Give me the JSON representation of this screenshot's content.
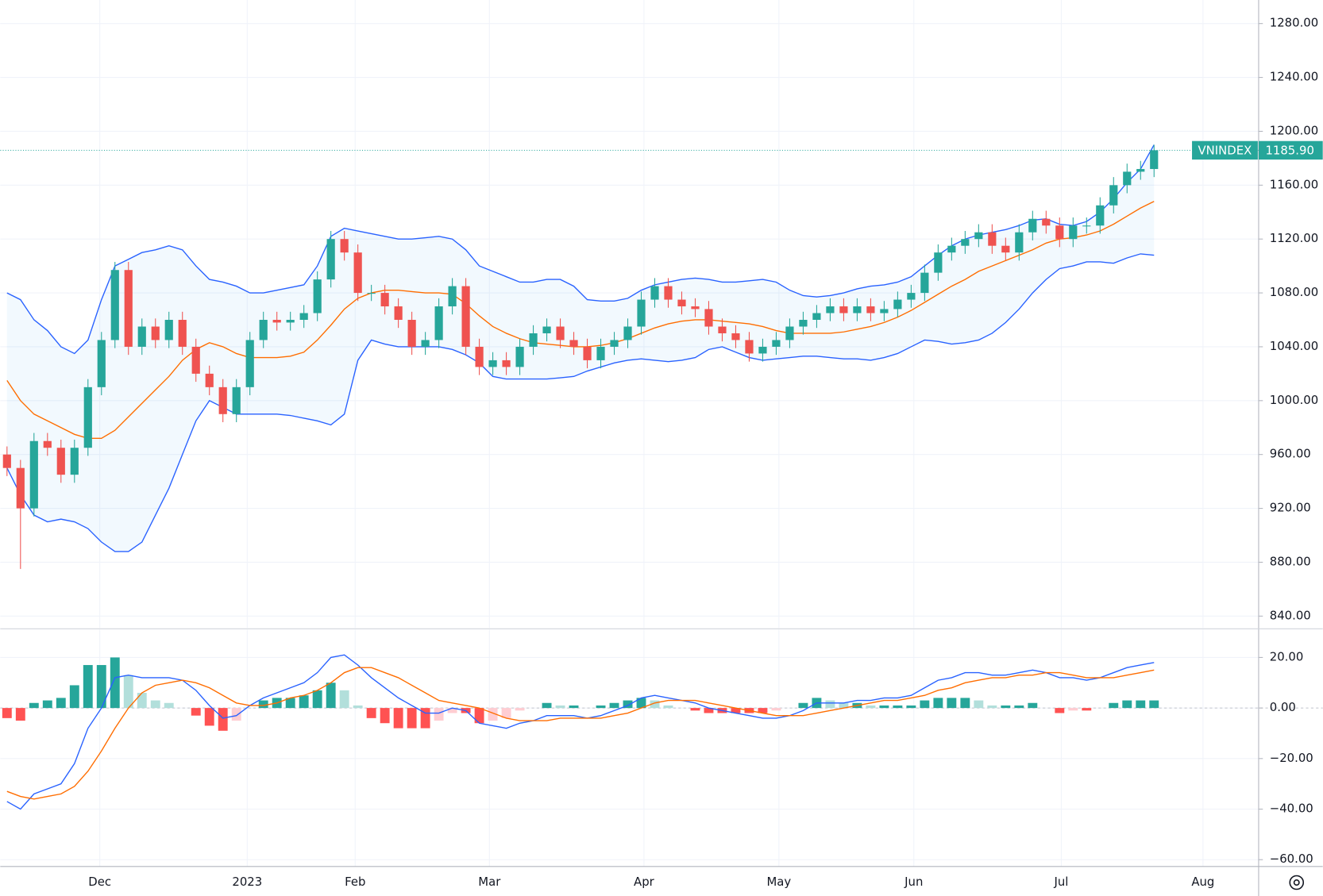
{
  "chart_data": [
    {
      "type": "candlestick",
      "symbol": "VNINDEX",
      "x": [
        1,
        3,
        5,
        7,
        9,
        11,
        13,
        15,
        17,
        19,
        21,
        23,
        25,
        27,
        29,
        31,
        33,
        35,
        37,
        39,
        41,
        43,
        45,
        47,
        49,
        51,
        53,
        55,
        57,
        59,
        61,
        63,
        65,
        67,
        69,
        71,
        73,
        75,
        77,
        79,
        81,
        83,
        85,
        87,
        89,
        91,
        93,
        95,
        97,
        99,
        101,
        103,
        105,
        107,
        109,
        111,
        113,
        115,
        117,
        119,
        121,
        123,
        125,
        127,
        129,
        131,
        133,
        135,
        137,
        139,
        141,
        143,
        145,
        147,
        149,
        151,
        153,
        155,
        157,
        159,
        161,
        163,
        165,
        167,
        169,
        171
      ],
      "open": [
        960,
        950,
        920,
        970,
        965,
        945,
        965,
        1010,
        1045,
        1097,
        1040,
        1055,
        1045,
        1060,
        1040,
        1020,
        1010,
        990,
        1010,
        1045,
        1060,
        1058,
        1060,
        1065,
        1090,
        1120,
        1110,
        1080,
        1080,
        1070,
        1060,
        1040,
        1045,
        1070,
        1085,
        1040,
        1025,
        1030,
        1025,
        1040,
        1050,
        1055,
        1045,
        1040,
        1030,
        1040,
        1045,
        1055,
        1075,
        1085,
        1075,
        1070,
        1068,
        1055,
        1050,
        1045,
        1035,
        1040,
        1045,
        1055,
        1060,
        1065,
        1070,
        1065,
        1070,
        1065,
        1068,
        1075,
        1080,
        1095,
        1110,
        1115,
        1120,
        1125,
        1115,
        1110,
        1125,
        1135,
        1130,
        1120,
        1130,
        1130,
        1145,
        1160,
        1170,
        1172
      ],
      "high": [
        966,
        956,
        976,
        976,
        971,
        971,
        1016,
        1051,
        1103,
        1103,
        1061,
        1061,
        1066,
        1066,
        1046,
        1026,
        1016,
        1016,
        1051,
        1066,
        1066,
        1066,
        1071,
        1096,
        1126,
        1126,
        1116,
        1086,
        1086,
        1076,
        1066,
        1051,
        1076,
        1091,
        1091,
        1046,
        1036,
        1036,
        1046,
        1056,
        1061,
        1061,
        1051,
        1046,
        1046,
        1051,
        1061,
        1081,
        1091,
        1091,
        1081,
        1076,
        1074,
        1061,
        1056,
        1051,
        1046,
        1051,
        1061,
        1066,
        1071,
        1076,
        1076,
        1076,
        1076,
        1074,
        1081,
        1086,
        1101,
        1116,
        1121,
        1126,
        1131,
        1131,
        1121,
        1131,
        1141,
        1141,
        1136,
        1136,
        1136,
        1151,
        1166,
        1176,
        1178,
        1190
      ],
      "low": [
        944,
        875,
        914,
        959,
        939,
        939,
        959,
        1004,
        1039,
        1034,
        1034,
        1039,
        1039,
        1034,
        1014,
        1004,
        984,
        984,
        1004,
        1039,
        1052,
        1052,
        1054,
        1059,
        1084,
        1104,
        1074,
        1074,
        1064,
        1054,
        1034,
        1034,
        1039,
        1064,
        1034,
        1019,
        1019,
        1019,
        1019,
        1034,
        1044,
        1039,
        1034,
        1024,
        1024,
        1034,
        1039,
        1049,
        1069,
        1069,
        1064,
        1062,
        1049,
        1044,
        1039,
        1029,
        1029,
        1034,
        1039,
        1049,
        1054,
        1059,
        1059,
        1059,
        1059,
        1059,
        1062,
        1069,
        1074,
        1089,
        1104,
        1109,
        1114,
        1109,
        1104,
        1104,
        1119,
        1124,
        1114,
        1114,
        1124,
        1124,
        1139,
        1154,
        1164,
        1166
      ],
      "close": [
        950,
        920,
        970,
        965,
        945,
        965,
        1010,
        1045,
        1097,
        1040,
        1055,
        1045,
        1060,
        1040,
        1020,
        1010,
        990,
        1010,
        1045,
        1060,
        1058,
        1060,
        1065,
        1090,
        1120,
        1110,
        1080,
        1080,
        1070,
        1060,
        1040,
        1045,
        1070,
        1085,
        1040,
        1025,
        1030,
        1025,
        1040,
        1050,
        1055,
        1045,
        1040,
        1030,
        1040,
        1045,
        1055,
        1075,
        1085,
        1075,
        1070,
        1068,
        1055,
        1050,
        1045,
        1035,
        1040,
        1045,
        1055,
        1060,
        1065,
        1070,
        1065,
        1070,
        1065,
        1068,
        1075,
        1080,
        1095,
        1110,
        1115,
        1120,
        1125,
        1115,
        1110,
        1125,
        1135,
        1130,
        1120,
        1130,
        1130,
        1145,
        1160,
        1170,
        1172,
        1185.9
      ],
      "last_label": "1185.90",
      "up_color": "#26a69a",
      "down_color": "#ef5350",
      "bands": [
        {
          "color": "#2962ff",
          "values": [
            1080,
            1075,
            1060,
            1052,
            1040,
            1035,
            1045,
            1075,
            1100,
            1105,
            1110,
            1112,
            1115,
            1112,
            1100,
            1090,
            1088,
            1085,
            1080,
            1080,
            1082,
            1084,
            1086,
            1100,
            1122,
            1128,
            1126,
            1124,
            1122,
            1120,
            1120,
            1121,
            1122,
            1120,
            1112,
            1100,
            1096,
            1092,
            1088,
            1088,
            1090,
            1090,
            1085,
            1075,
            1074,
            1074,
            1076,
            1082,
            1086,
            1088,
            1090,
            1091,
            1090,
            1088,
            1088,
            1089,
            1090,
            1088,
            1082,
            1078,
            1077,
            1078,
            1080,
            1083,
            1085,
            1086,
            1088,
            1092,
            1100,
            1108,
            1115,
            1120,
            1123,
            1125,
            1127,
            1130,
            1134,
            1135,
            1131,
            1130,
            1133,
            1140,
            1150,
            1162,
            1172,
            1190
          ]
        },
        {
          "color": "#ff6d00",
          "values": [
            1015,
            1000,
            990,
            985,
            980,
            975,
            972,
            972,
            978,
            988,
            998,
            1008,
            1018,
            1030,
            1038,
            1043,
            1040,
            1035,
            1032,
            1032,
            1032,
            1033,
            1036,
            1045,
            1056,
            1068,
            1076,
            1080,
            1082,
            1082,
            1081,
            1080,
            1080,
            1079,
            1072,
            1063,
            1055,
            1050,
            1046,
            1043,
            1042,
            1041,
            1040,
            1040,
            1041,
            1043,
            1046,
            1050,
            1054,
            1057,
            1059,
            1060,
            1060,
            1059,
            1058,
            1057,
            1055,
            1052,
            1050,
            1050,
            1050,
            1050,
            1051,
            1053,
            1055,
            1058,
            1062,
            1067,
            1073,
            1079,
            1085,
            1090,
            1096,
            1100,
            1104,
            1108,
            1112,
            1117,
            1120,
            1121,
            1123,
            1126,
            1131,
            1137,
            1143,
            1148
          ]
        },
        {
          "color": "#2962ff",
          "values": [
            950,
            930,
            915,
            910,
            912,
            910,
            905,
            895,
            888,
            888,
            895,
            915,
            935,
            960,
            985,
            1000,
            995,
            990,
            990,
            990,
            990,
            989,
            987,
            985,
            982,
            990,
            1030,
            1045,
            1042,
            1040,
            1040,
            1040,
            1040,
            1038,
            1034,
            1028,
            1018,
            1016,
            1016,
            1016,
            1016,
            1017,
            1018,
            1022,
            1025,
            1028,
            1030,
            1031,
            1030,
            1029,
            1030,
            1032,
            1038,
            1040,
            1036,
            1032,
            1030,
            1031,
            1032,
            1033,
            1033,
            1032,
            1031,
            1031,
            1030,
            1032,
            1035,
            1040,
            1045,
            1044,
            1042,
            1043,
            1045,
            1050,
            1058,
            1068,
            1080,
            1090,
            1098,
            1100,
            1103,
            1103,
            1102,
            1106,
            1109,
            1108
          ]
        }
      ],
      "band_fill": "rgba(33,150,243,0.06)",
      "xlim": [
        0,
        186.5
      ],
      "xticks": [
        {
          "value": 14.75,
          "label": "Dec"
        },
        {
          "value": 36.6,
          "label": "2023"
        },
        {
          "value": 52.6,
          "label": "Feb"
        },
        {
          "value": 72.5,
          "label": "Mar"
        },
        {
          "value": 95.4,
          "label": "Apr"
        },
        {
          "value": 115.4,
          "label": "May"
        },
        {
          "value": 135.4,
          "label": "Jun"
        },
        {
          "value": 157.25,
          "label": "Jul"
        },
        {
          "value": 178.25,
          "label": "Aug"
        }
      ],
      "ylim": [
        831.2,
        1297.5
      ],
      "yticks": [
        {
          "value": 840,
          "label": "840.00"
        },
        {
          "value": 880,
          "label": "880.00"
        },
        {
          "value": 920,
          "label": "920.00"
        },
        {
          "value": 960,
          "label": "960.00"
        },
        {
          "value": 1000,
          "label": "1000.00"
        },
        {
          "value": 1040,
          "label": "1040.00"
        },
        {
          "value": 1080,
          "label": "1080.00"
        },
        {
          "value": 1120,
          "label": "1120.00"
        },
        {
          "value": 1160,
          "label": "1160.00"
        },
        {
          "value": 1200,
          "label": "1200.00"
        },
        {
          "value": 1240,
          "label": "1240.00"
        },
        {
          "value": 1280,
          "label": "1280.00"
        }
      ],
      "grid": true
    },
    {
      "type": "macd",
      "series": [
        {
          "color": "#2962ff",
          "values": [
            -37,
            -40,
            -34,
            -32,
            -30,
            -22,
            -8,
            0,
            12,
            13,
            12,
            12,
            12,
            11,
            7,
            1,
            -4,
            -3,
            1,
            4,
            6,
            8,
            10,
            14,
            20,
            21,
            17,
            12,
            8,
            4,
            1,
            -2,
            -2,
            0,
            -1,
            -6,
            -7,
            -8,
            -6,
            -5,
            -3,
            -3,
            -3,
            -4,
            -3,
            -1,
            1,
            4,
            5,
            4,
            3,
            2,
            0,
            -1,
            -2,
            -3,
            -4,
            -4,
            -3,
            -1,
            2,
            2,
            2,
            3,
            3,
            4,
            4,
            5,
            8,
            11,
            12,
            14,
            14,
            13,
            13,
            14,
            15,
            14,
            12,
            12,
            11,
            12,
            14,
            16,
            17,
            18
          ]
        },
        {
          "color": "#ff6d00",
          "values": [
            -33,
            -35,
            -36,
            -35,
            -34,
            -31,
            -25,
            -17,
            -8,
            0,
            6,
            9,
            10,
            11,
            10,
            8,
            5,
            2,
            1,
            1,
            2,
            4,
            5,
            7,
            10,
            14,
            16,
            16,
            14,
            12,
            9,
            6,
            3,
            2,
            1,
            0,
            -2,
            -4,
            -5,
            -5,
            -5,
            -4,
            -4,
            -4,
            -4,
            -3,
            -2,
            0,
            2,
            3,
            3,
            3,
            2,
            1,
            0,
            -1,
            -2,
            -3,
            -3,
            -3,
            -2,
            -1,
            0,
            1,
            2,
            3,
            3,
            4,
            5,
            7,
            8,
            10,
            11,
            12,
            12,
            13,
            13,
            14,
            14,
            13,
            12,
            12,
            12,
            13,
            14,
            15
          ]
        }
      ],
      "histogram": [
        -4,
        -5,
        2,
        3,
        4,
        9,
        17,
        17,
        20,
        13,
        6,
        3,
        2,
        0,
        -3,
        -7,
        -9,
        -5,
        0,
        3,
        4,
        4,
        5,
        7,
        10,
        7,
        1,
        -4,
        -6,
        -8,
        -8,
        -8,
        -5,
        -2,
        -2,
        -6,
        -5,
        -4,
        -1,
        0,
        2,
        1,
        1,
        0,
        1,
        2,
        3,
        4,
        3,
        1,
        0,
        -1,
        -2,
        -2,
        -2,
        -2,
        -2,
        -1,
        0,
        2,
        4,
        3,
        2,
        2,
        1,
        1,
        1,
        1,
        3,
        4,
        4,
        4,
        3,
        1,
        1,
        1,
        2,
        0,
        -2,
        -1,
        -1,
        0,
        2,
        3,
        3,
        3
      ],
      "histogram_colors": {
        "pos_up": "#26a69a",
        "pos_down": "#b2dfdb",
        "neg_down": "#ff5252",
        "neg_up": "#ffcdd2"
      },
      "ylim": [
        -62.7,
        31
      ],
      "yticks": [
        {
          "value": -60,
          "label": "−60.00"
        },
        {
          "value": -40,
          "label": "−40.00"
        },
        {
          "value": -20,
          "label": "−20.00"
        },
        {
          "value": 0,
          "label": "0.00"
        },
        {
          "value": 20,
          "label": "20.00"
        }
      ],
      "grid": true
    }
  ]
}
